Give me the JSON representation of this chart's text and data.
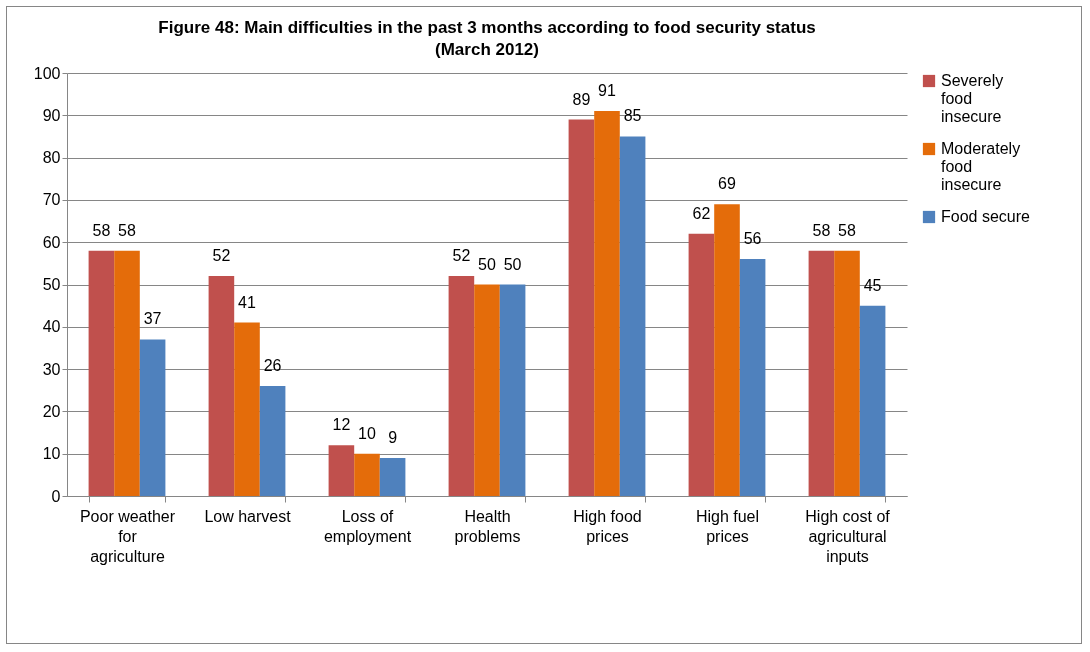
{
  "chart_data": {
    "type": "bar",
    "title": "Figure 48: Main difficulties in the past 3 months according to food security status (March 2012)",
    "categories": [
      "Poor weather for agriculture",
      "Low harvest",
      "Loss of employment",
      "Health problems",
      "High food prices",
      "High fuel prices",
      "High cost of agricultural inputs"
    ],
    "series": [
      {
        "name": "Severely food insecure",
        "color": "#c0504d",
        "values": [
          58,
          52,
          12,
          52,
          89,
          62,
          58
        ]
      },
      {
        "name": "Moderately food insecure",
        "color": "#e46c0a",
        "values": [
          58,
          41,
          10,
          50,
          91,
          69,
          58
        ]
      },
      {
        "name": "Food secure",
        "color": "#4f81bd",
        "values": [
          37,
          26,
          9,
          50,
          85,
          56,
          45
        ]
      }
    ],
    "ylim": [
      0,
      100
    ],
    "yticks": [
      0,
      10,
      20,
      30,
      40,
      50,
      60,
      70,
      80,
      90,
      100
    ],
    "grid": "y",
    "legend": "right",
    "data_labels": true
  }
}
